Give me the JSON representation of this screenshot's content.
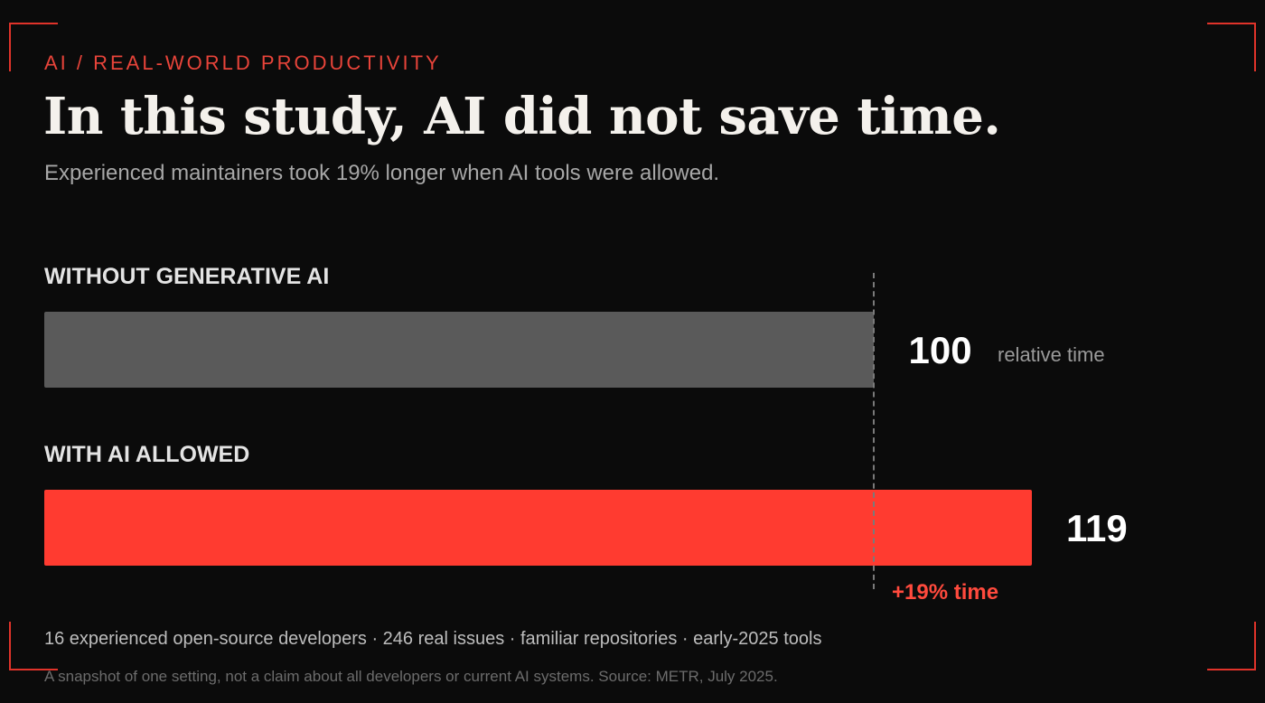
{
  "header": {
    "kicker": "AI / REAL-WORLD PRODUCTIVITY",
    "title": "In this study, AI did not save time.",
    "subtitle": "Experienced maintainers took 19% longer when AI tools were allowed."
  },
  "chart_data": {
    "type": "bar",
    "orientation": "horizontal",
    "categories": [
      "WITHOUT GENERATIVE AI",
      "WITH AI ALLOWED"
    ],
    "values": [
      100,
      119
    ],
    "value_labels": [
      "100",
      "119"
    ],
    "unit_label": "relative time",
    "reference_value": 100,
    "reference_line": "dashed",
    "delta_label": "+19% time",
    "xlim": [
      0,
      119
    ],
    "grid": false,
    "colors": {
      "baseline": "#5a5a5a",
      "ai": "#ff3b30",
      "accent": "#e8443a"
    }
  },
  "footer": {
    "facts": "16 experienced open-source developers · 246 real issues · familiar repositories · early-2025 tools",
    "note": "A snapshot of one setting, not a claim about all developers or current AI systems. Source: METR, July 2025."
  }
}
